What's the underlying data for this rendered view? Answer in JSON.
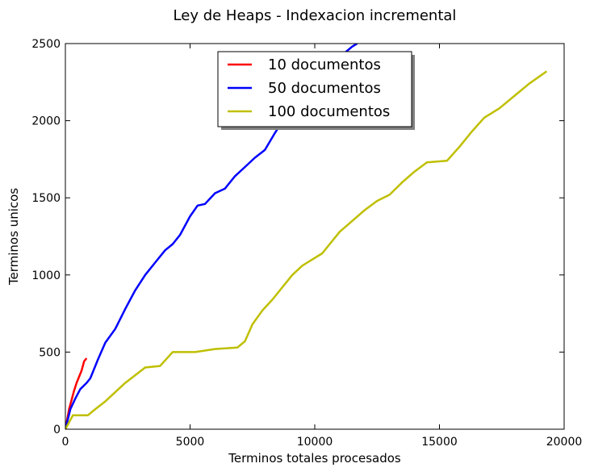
{
  "chart_data": {
    "type": "line",
    "title": "Ley de Heaps - Indexacion incremental",
    "xlabel": "Terminos totales procesados",
    "ylabel": "Terminos unicos",
    "xlim": [
      0,
      20000
    ],
    "ylim": [
      0,
      2500
    ],
    "xticks": [
      0,
      5000,
      10000,
      15000,
      20000
    ],
    "yticks": [
      0,
      500,
      1000,
      1500,
      2000,
      2500
    ],
    "grid": false,
    "legend_position": "top-center",
    "series": [
      {
        "name": "10 documentos",
        "color": "#ff0000",
        "x": [
          0,
          80,
          150,
          250,
          350,
          450,
          550,
          650,
          750,
          850
        ],
        "y": [
          0,
          70,
          130,
          190,
          250,
          300,
          340,
          380,
          440,
          460
        ]
      },
      {
        "name": "50 documentos",
        "color": "#0000ff",
        "x": [
          0,
          200,
          400,
          600,
          850,
          1000,
          1300,
          1600,
          2000,
          2400,
          2800,
          3200,
          3600,
          4000,
          4300,
          4600,
          5000,
          5300,
          5600,
          6000,
          6400,
          6800,
          7200,
          7600,
          8000,
          8400,
          8800,
          9200,
          9600,
          10000,
          10400,
          10800,
          11200,
          11500,
          11700
        ],
        "y": [
          0,
          130,
          200,
          260,
          300,
          330,
          450,
          560,
          650,
          780,
          900,
          1000,
          1080,
          1160,
          1200,
          1260,
          1380,
          1450,
          1460,
          1530,
          1560,
          1640,
          1700,
          1760,
          1810,
          1920,
          2020,
          2100,
          2170,
          2250,
          2320,
          2390,
          2440,
          2480,
          2500
        ]
      },
      {
        "name": "100 documentos",
        "color": "#bfbf00",
        "x": [
          0,
          300,
          900,
          1200,
          1600,
          2000,
          2400,
          2800,
          3200,
          3800,
          4300,
          5200,
          6000,
          6900,
          7200,
          7500,
          7900,
          8300,
          8700,
          9100,
          9500,
          9800,
          10300,
          10600,
          11000,
          11500,
          12000,
          12500,
          13000,
          13500,
          14000,
          14500,
          15300,
          15800,
          16300,
          16800,
          17400,
          18000,
          18600,
          19300
        ],
        "y": [
          0,
          90,
          90,
          130,
          180,
          240,
          300,
          350,
          400,
          410,
          500,
          500,
          520,
          530,
          570,
          680,
          770,
          840,
          920,
          1000,
          1060,
          1090,
          1140,
          1200,
          1280,
          1350,
          1420,
          1480,
          1520,
          1600,
          1670,
          1730,
          1740,
          1830,
          1930,
          2020,
          2080,
          2160,
          2240,
          2320
        ]
      }
    ]
  }
}
